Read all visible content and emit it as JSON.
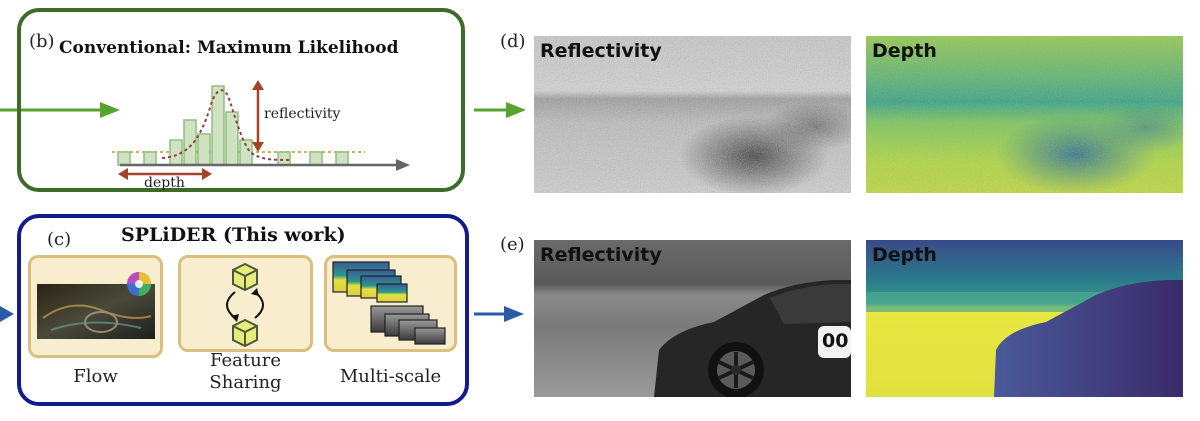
{
  "colors": {
    "green_frame": "#3d6b28",
    "green_arrow": "#5aa22e",
    "blue_frame": "#141b8a",
    "blue_arrow": "#2a5aa8",
    "histogram_fill": "#cfe3c2",
    "histogram_stroke": "#8fbf7f",
    "card_fill": "#f8edce",
    "card_stroke": "#d9c07f",
    "annotation_brown": "#a0452a"
  },
  "panel_b": {
    "tag": "(b)",
    "title": "Conventional: Maximum Likelihood",
    "reflectivity_label": "reflectivity",
    "depth_label": "depth"
  },
  "panel_c": {
    "tag": "(c)",
    "title": "SPLiDER (This work)",
    "cards": [
      {
        "label": "Flow",
        "icon": "flow-field-image-with-color-wheel"
      },
      {
        "label": "Feature\nSharing",
        "icon": "feature-sharing-cubes-icon"
      },
      {
        "label": "Multi-scale",
        "icon": "stacked-pyramid-images"
      }
    ]
  },
  "panel_d": {
    "tag": "(d)",
    "reflectivity_label": "Reflectivity",
    "depth_label": "Depth"
  },
  "panel_e": {
    "tag": "(e)",
    "reflectivity_label": "Reflectivity",
    "depth_label": "Depth",
    "car_plate_text": "00"
  }
}
